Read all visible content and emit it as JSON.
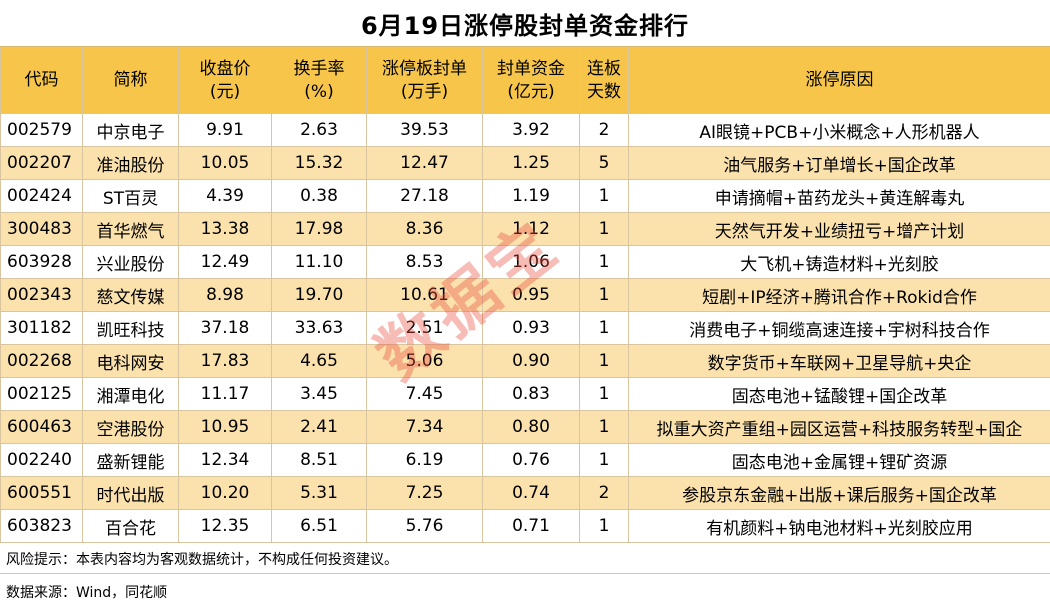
{
  "title": "6月19日涨停股封单资金排行",
  "headers": {
    "code": "代码",
    "name": "简称",
    "close_l1": "收盘价",
    "close_l2": "(元)",
    "turnover_l1": "换手率",
    "turnover_l2": "(%)",
    "seal_l1": "涨停板封单",
    "seal_l2": "(万手)",
    "fund_l1": "封单资金",
    "fund_l2": "(亿元)",
    "days_l1": "连板",
    "days_l2": "天数",
    "reason": "涨停原因"
  },
  "rows": [
    {
      "code": "002579",
      "name": "中京电子",
      "close": "9.91",
      "turnover": "2.63",
      "seal": "39.53",
      "fund": "3.92",
      "days": "2",
      "reason": "AI眼镜+PCB+小米概念+人形机器人"
    },
    {
      "code": "002207",
      "name": "准油股份",
      "close": "10.05",
      "turnover": "15.32",
      "seal": "12.47",
      "fund": "1.25",
      "days": "5",
      "reason": "油气服务+订单增长+国企改革"
    },
    {
      "code": "002424",
      "name": "ST百灵",
      "close": "4.39",
      "turnover": "0.38",
      "seal": "27.18",
      "fund": "1.19",
      "days": "1",
      "reason": "申请摘帽+苗药龙头+黄连解毒丸"
    },
    {
      "code": "300483",
      "name": "首华燃气",
      "close": "13.38",
      "turnover": "17.98",
      "seal": "8.36",
      "fund": "1.12",
      "days": "1",
      "reason": "天然气开发+业绩扭亏+增产计划"
    },
    {
      "code": "603928",
      "name": "兴业股份",
      "close": "12.49",
      "turnover": "11.10",
      "seal": "8.53",
      "fund": "1.06",
      "days": "1",
      "reason": "大飞机+铸造材料+光刻胶"
    },
    {
      "code": "002343",
      "name": "慈文传媒",
      "close": "8.98",
      "turnover": "19.70",
      "seal": "10.61",
      "fund": "0.95",
      "days": "1",
      "reason": "短剧+IP经济+腾讯合作+Rokid合作"
    },
    {
      "code": "301182",
      "name": "凯旺科技",
      "close": "37.18",
      "turnover": "33.63",
      "seal": "2.51",
      "fund": "0.93",
      "days": "1",
      "reason": "消费电子+铜缆高速连接+宇树科技合作"
    },
    {
      "code": "002268",
      "name": "电科网安",
      "close": "17.83",
      "turnover": "4.65",
      "seal": "5.06",
      "fund": "0.90",
      "days": "1",
      "reason": "数字货币+车联网+卫星导航+央企"
    },
    {
      "code": "002125",
      "name": "湘潭电化",
      "close": "11.17",
      "turnover": "3.45",
      "seal": "7.45",
      "fund": "0.83",
      "days": "1",
      "reason": "固态电池+锰酸锂+国企改革"
    },
    {
      "code": "600463",
      "name": "空港股份",
      "close": "10.95",
      "turnover": "2.41",
      "seal": "7.34",
      "fund": "0.80",
      "days": "1",
      "reason": "拟重大资产重组+园区运营+科技服务转型+国企"
    },
    {
      "code": "002240",
      "name": "盛新锂能",
      "close": "12.34",
      "turnover": "8.51",
      "seal": "6.19",
      "fund": "0.76",
      "days": "1",
      "reason": "固态电池+金属锂+锂矿资源"
    },
    {
      "code": "600551",
      "name": "时代出版",
      "close": "10.20",
      "turnover": "5.31",
      "seal": "7.25",
      "fund": "0.74",
      "days": "2",
      "reason": "参股京东金融+出版+课后服务+国企改革"
    },
    {
      "code": "603823",
      "name": "百合花",
      "close": "12.35",
      "turnover": "6.51",
      "seal": "5.76",
      "fund": "0.71",
      "days": "1",
      "reason": "有机颜料+钠电池材料+光刻胶应用"
    }
  ],
  "footer": {
    "risk": "风险提示：本表内容均为客观数据统计，不构成任何投资建议。",
    "source": "数据来源：Wind，同花顺"
  },
  "watermark": "数据宝",
  "colors": {
    "header_bg": "#f6c54a",
    "alt_row_bg": "#fbe2ad",
    "border": "#d9c6a0",
    "watermark": "#e9503c"
  }
}
